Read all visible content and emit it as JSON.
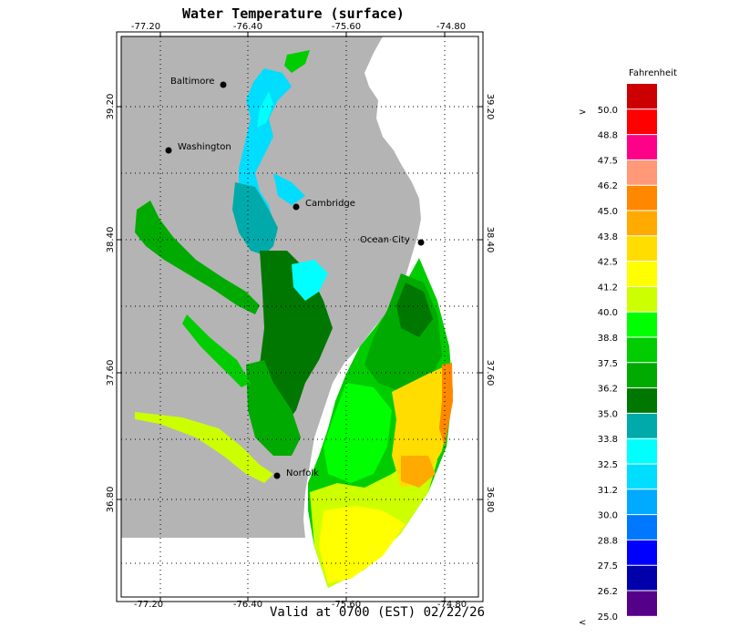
{
  "title": "Water Temperature (surface)",
  "valid_text": "Valid at 0700 (EST) 02/22/26",
  "legend": {
    "title": "Fahrenheit",
    "over_prefix": ">",
    "under_prefix": "<",
    "entries": [
      {
        "label": "50.0",
        "color": "#cc0000"
      },
      {
        "label": "48.8",
        "color": "#ff0000"
      },
      {
        "label": "47.5",
        "color": "#ff0088"
      },
      {
        "label": "46.2",
        "color": "#ff9977"
      },
      {
        "label": "45.0",
        "color": "#ff8800"
      },
      {
        "label": "43.8",
        "color": "#ffaa00"
      },
      {
        "label": "42.5",
        "color": "#ffdd00"
      },
      {
        "label": "41.2",
        "color": "#ffff00"
      },
      {
        "label": "40.0",
        "color": "#ccff00"
      },
      {
        "label": "38.8",
        "color": "#00ff00"
      },
      {
        "label": "37.5",
        "color": "#00cc00"
      },
      {
        "label": "36.2",
        "color": "#00aa00"
      },
      {
        "label": "35.0",
        "color": "#007700"
      },
      {
        "label": "33.8",
        "color": "#00aaaa"
      },
      {
        "label": "32.5",
        "color": "#00ffff"
      },
      {
        "label": "31.2",
        "color": "#00ddff"
      },
      {
        "label": "30.0",
        "color": "#00aaff"
      },
      {
        "label": "28.8",
        "color": "#0077ff"
      },
      {
        "label": "27.5",
        "color": "#0000ff"
      },
      {
        "label": "26.2",
        "color": "#0000aa"
      },
      {
        "label": "25.0",
        "color": "#550088"
      }
    ]
  },
  "axes": {
    "lon_ticks": [
      "-77.20",
      "-76.40",
      "-75.60",
      "-74.80"
    ],
    "lat_ticks": [
      "39.20",
      "38.40",
      "37.60",
      "36.80"
    ]
  },
  "cities": [
    "Baltimore",
    "Washington",
    "Cambridge",
    "Ocean City",
    "Norfolk"
  ],
  "colors": {
    "land": "#b4b4b4",
    "water_background": "#ffffff",
    "grid": "#000000"
  }
}
